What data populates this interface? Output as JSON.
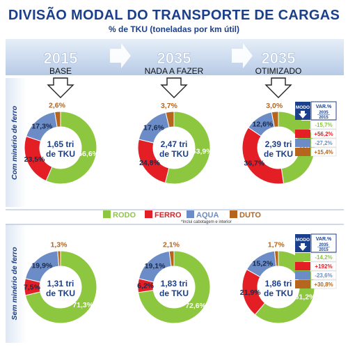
{
  "title": "DIVISÃO MODAL DO TRANSPORTE DE CARGAS",
  "subtitle": "% de TKU (toneladas por km útil)",
  "colors": {
    "rodo": "#8dc63f",
    "ferro": "#e31e24",
    "aqua": "#6b8cc7",
    "duto": "#b5651d",
    "navy": "#1b3f8b"
  },
  "scenarios": [
    {
      "year": "2015",
      "label": "BASE"
    },
    {
      "year": "2035",
      "label": "NADA A FAZER"
    },
    {
      "year": "2035",
      "label": "OTIMIZADO"
    }
  ],
  "row_labels": [
    "Com minério de ferro",
    "Sem minério de ferro"
  ],
  "legend": {
    "items": [
      {
        "key": "rodo",
        "label": "RODO"
      },
      {
        "key": "ferro",
        "label": "FERRO"
      },
      {
        "key": "aqua",
        "label": "AQUA"
      },
      {
        "key": "duto",
        "label": "DUTO"
      }
    ],
    "note": "*Inclui cabotagem e interior"
  },
  "chart_data": [
    {
      "type": "pie",
      "title": "Com minério de ferro – 2015 BASE",
      "center_label": [
        "1,65 tri",
        "de TKU"
      ],
      "categories": [
        "RODO",
        "FERRO",
        "AQUA",
        "DUTO"
      ],
      "values": [
        56.6,
        23.5,
        17.3,
        2.6
      ],
      "value_labels": [
        "56,6%",
        "23,5%",
        "17,3%",
        "2,6%"
      ]
    },
    {
      "type": "pie",
      "title": "Com minério de ferro – 2035 NADA A FAZER",
      "center_label": [
        "2,47 tri",
        "de TKU"
      ],
      "categories": [
        "RODO",
        "FERRO",
        "AQUA",
        "DUTO"
      ],
      "values": [
        53.9,
        24.8,
        17.6,
        3.7
      ],
      "value_labels": [
        "53,9%",
        "24,8%",
        "17,6%",
        "3,7%"
      ]
    },
    {
      "type": "pie",
      "title": "Com minério de ferro – 2035 OTIMIZADO",
      "center_label": [
        "2,39 tri",
        "de TKU"
      ],
      "categories": [
        "RODO",
        "FERRO",
        "AQUA",
        "DUTO"
      ],
      "values": [
        47.7,
        36.7,
        12.6,
        3.0
      ],
      "value_labels": [
        "47,7%",
        "36,7%",
        "12,6%",
        "3,0%"
      ]
    },
    {
      "type": "pie",
      "title": "Sem minério de ferro – 2015 BASE",
      "center_label": [
        "1,31 tri",
        "de TKU"
      ],
      "categories": [
        "RODO",
        "FERRO",
        "AQUA",
        "DUTO"
      ],
      "values": [
        71.3,
        7.5,
        19.9,
        1.3
      ],
      "value_labels": [
        "71,3%",
        "7,5%",
        "19,9%",
        "1,3%"
      ]
    },
    {
      "type": "pie",
      "title": "Sem minério de ferro – 2035 NADA A FAZER",
      "center_label": [
        "1,83 tri",
        "de TKU"
      ],
      "categories": [
        "RODO",
        "FERRO",
        "AQUA",
        "DUTO"
      ],
      "values": [
        72.6,
        6.2,
        19.1,
        2.1
      ],
      "value_labels": [
        "72,6%",
        "6,2%",
        "19,1%",
        "2,1%"
      ]
    },
    {
      "type": "pie",
      "title": "Sem minério de ferro – 2035 OTIMIZADO",
      "center_label": [
        "1,86 tri",
        "de TKU"
      ],
      "categories": [
        "RODO",
        "FERRO",
        "AQUA",
        "DUTO"
      ],
      "values": [
        61.2,
        21.9,
        15.2,
        1.7
      ],
      "value_labels": [
        "61,2%",
        "21,9%",
        "15,2%",
        "1,7%"
      ]
    }
  ],
  "var_tables": [
    {
      "header_modo": "MODO",
      "header_var": "VAR.%",
      "header_years": [
        "2035",
        "2015"
      ],
      "rows": [
        {
          "key": "rodo",
          "value": "-15,7%"
        },
        {
          "key": "ferro",
          "value": "+56,2%"
        },
        {
          "key": "aqua",
          "value": "-27,2%"
        },
        {
          "key": "duto",
          "value": "+15,4%"
        }
      ]
    },
    {
      "header_modo": "MODO",
      "header_var": "VAR.%",
      "header_years": [
        "2035",
        "2015"
      ],
      "rows": [
        {
          "key": "rodo",
          "value": "-14,2%"
        },
        {
          "key": "ferro",
          "value": "+192%"
        },
        {
          "key": "aqua",
          "value": "-23,6%"
        },
        {
          "key": "duto",
          "value": "+30,8%"
        }
      ]
    }
  ]
}
